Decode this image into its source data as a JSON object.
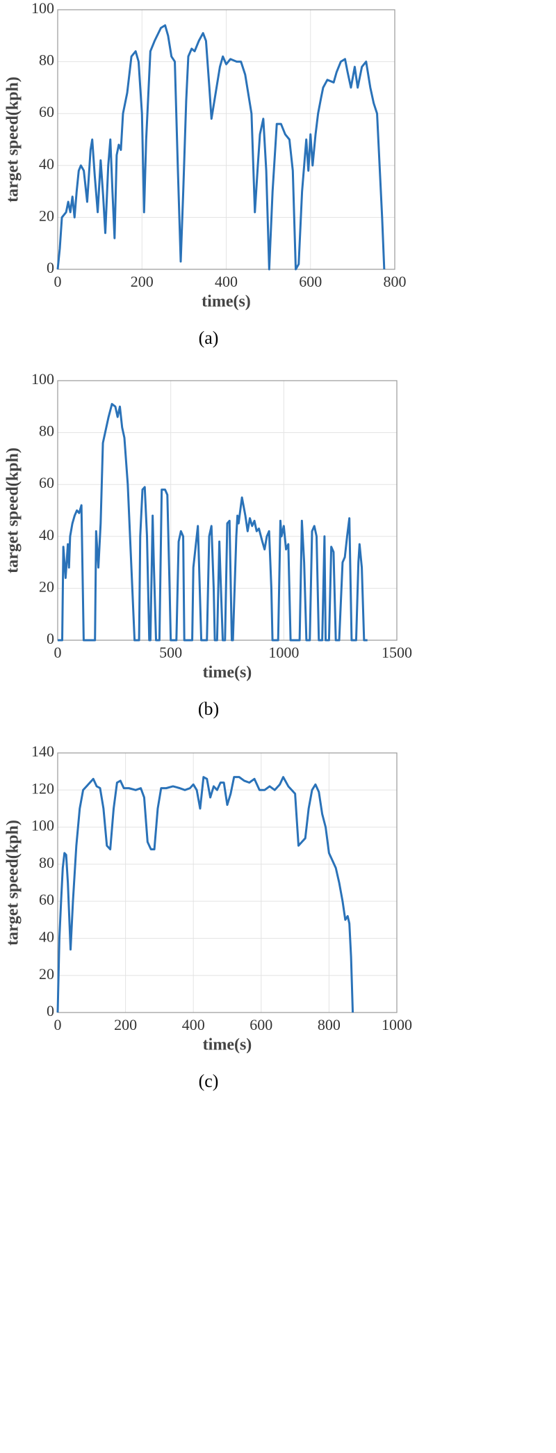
{
  "chart_data": [
    {
      "type": "line",
      "caption": "(a)",
      "xlabel": "time(s)",
      "ylabel": "target speed(kph)",
      "color": "#2a72b8",
      "grid": true,
      "xlim": [
        0,
        800
      ],
      "ylim": [
        0,
        100
      ],
      "xticks": [
        0,
        200,
        400,
        600,
        800
      ],
      "yticks": [
        0,
        20,
        40,
        60,
        80,
        100
      ],
      "x": [
        0,
        5,
        10,
        20,
        25,
        30,
        35,
        40,
        45,
        50,
        55,
        62,
        70,
        78,
        82,
        88,
        95,
        102,
        108,
        113,
        120,
        125,
        130,
        135,
        140,
        145,
        150,
        155,
        165,
        175,
        185,
        192,
        200,
        205,
        210,
        220,
        230,
        245,
        255,
        262,
        270,
        278,
        285,
        292,
        298,
        305,
        310,
        318,
        325,
        335,
        345,
        352,
        360,
        365,
        375,
        385,
        392,
        400,
        410,
        425,
        435,
        445,
        460,
        468,
        475,
        480,
        488,
        495,
        502,
        510,
        520,
        530,
        540,
        550,
        558,
        565,
        572,
        580,
        590,
        595,
        600,
        605,
        612,
        618,
        625,
        630,
        640,
        655,
        662,
        672,
        682,
        688,
        696,
        705,
        712,
        722,
        732,
        742,
        750,
        758,
        770,
        775
      ],
      "values": [
        0,
        8,
        20,
        22,
        26,
        22,
        28,
        20,
        30,
        38,
        40,
        38,
        26,
        46,
        50,
        36,
        22,
        42,
        28,
        14,
        40,
        50,
        30,
        12,
        44,
        48,
        46,
        60,
        68,
        82,
        84,
        80,
        60,
        22,
        50,
        84,
        88,
        93,
        94,
        90,
        82,
        80,
        40,
        3,
        30,
        65,
        82,
        85,
        84,
        88,
        91,
        88,
        70,
        58,
        68,
        78,
        82,
        79,
        81,
        80,
        80,
        75,
        60,
        22,
        40,
        52,
        58,
        38,
        0,
        30,
        56,
        56,
        52,
        50,
        38,
        0,
        2,
        30,
        50,
        38,
        52,
        40,
        52,
        60,
        66,
        70,
        73,
        72,
        76,
        80,
        81,
        76,
        70,
        78,
        70,
        78,
        80,
        70,
        64,
        60,
        20,
        0
      ]
    },
    {
      "type": "line",
      "caption": "(b)",
      "xlabel": "time(s)",
      "ylabel": "target speed(kph)",
      "color": "#2a72b8",
      "grid": true,
      "xlim": [
        0,
        1500
      ],
      "ylim": [
        0,
        100
      ],
      "xticks": [
        0,
        500,
        1000,
        1500
      ],
      "yticks": [
        0,
        20,
        40,
        60,
        80,
        100
      ],
      "x": [
        0,
        20,
        25,
        35,
        45,
        50,
        55,
        65,
        75,
        85,
        95,
        105,
        115,
        150,
        165,
        170,
        180,
        190,
        200,
        210,
        225,
        240,
        255,
        265,
        275,
        285,
        295,
        310,
        330,
        340,
        360,
        365,
        375,
        385,
        395,
        405,
        410,
        420,
        425,
        435,
        450,
        460,
        475,
        485,
        495,
        500,
        525,
        535,
        545,
        555,
        560,
        595,
        600,
        610,
        620,
        625,
        635,
        660,
        670,
        680,
        690,
        695,
        705,
        715,
        720,
        730,
        740,
        750,
        760,
        770,
        775,
        790,
        795,
        800,
        815,
        830,
        840,
        850,
        860,
        870,
        880,
        890,
        905,
        915,
        925,
        935,
        945,
        950,
        975,
        985,
        990,
        1000,
        1010,
        1020,
        1030,
        1070,
        1080,
        1090,
        1100,
        1115,
        1125,
        1135,
        1145,
        1155,
        1170,
        1180,
        1185,
        1200,
        1210,
        1220,
        1230,
        1245,
        1260,
        1270,
        1280,
        1290,
        1300,
        1320,
        1330,
        1335,
        1345,
        1355,
        1370
      ],
      "values": [
        0,
        0,
        36,
        24,
        37,
        28,
        40,
        45,
        48,
        50,
        49,
        52,
        0,
        0,
        0,
        42,
        28,
        45,
        76,
        80,
        86,
        91,
        90,
        86,
        90,
        82,
        78,
        60,
        20,
        0,
        0,
        40,
        58,
        59,
        40,
        0,
        0,
        48,
        30,
        0,
        0,
        58,
        58,
        56,
        20,
        0,
        0,
        38,
        42,
        40,
        0,
        0,
        28,
        36,
        44,
        30,
        0,
        0,
        40,
        44,
        20,
        0,
        0,
        38,
        25,
        0,
        0,
        45,
        46,
        0,
        0,
        40,
        48,
        45,
        55,
        48,
        42,
        47,
        44,
        46,
        42,
        43,
        38,
        35,
        40,
        42,
        20,
        0,
        0,
        46,
        40,
        44,
        35,
        37,
        0,
        0,
        46,
        30,
        0,
        0,
        42,
        44,
        40,
        0,
        0,
        40,
        0,
        0,
        36,
        34,
        0,
        0,
        30,
        32,
        40,
        47,
        0,
        0,
        30,
        37,
        28,
        0,
        0
      ]
    },
    {
      "type": "line",
      "caption": "(c)",
      "xlabel": "time(s)",
      "ylabel": "target speed(kph)",
      "color": "#2a72b8",
      "grid": true,
      "xlim": [
        0,
        1000
      ],
      "ylim": [
        0,
        140
      ],
      "xticks": [
        0,
        200,
        400,
        600,
        800,
        1000
      ],
      "yticks": [
        0,
        20,
        40,
        60,
        80,
        100,
        120,
        140
      ],
      "x": [
        0,
        5,
        10,
        15,
        20,
        25,
        30,
        38,
        45,
        55,
        65,
        75,
        85,
        95,
        105,
        115,
        125,
        135,
        145,
        155,
        165,
        175,
        185,
        195,
        210,
        230,
        245,
        255,
        265,
        275,
        285,
        295,
        305,
        320,
        340,
        360,
        375,
        390,
        400,
        410,
        420,
        430,
        440,
        450,
        460,
        470,
        480,
        490,
        500,
        510,
        520,
        535,
        550,
        565,
        580,
        595,
        610,
        625,
        640,
        655,
        665,
        680,
        690,
        700,
        710,
        720,
        730,
        740,
        750,
        760,
        770,
        780,
        790,
        800,
        810,
        820,
        830,
        840,
        848,
        855,
        860,
        865,
        870
      ],
      "values": [
        0,
        40,
        60,
        78,
        86,
        85,
        70,
        34,
        60,
        90,
        110,
        120,
        122,
        124,
        126,
        122,
        121,
        110,
        90,
        88,
        110,
        124,
        125,
        121,
        121,
        120,
        121,
        116,
        92,
        88,
        88,
        110,
        121,
        121,
        122,
        121,
        120,
        121,
        123,
        120,
        110,
        127,
        126,
        116,
        122,
        120,
        124,
        124,
        112,
        118,
        127,
        127,
        125,
        124,
        126,
        120,
        120,
        122,
        120,
        123,
        127,
        122,
        120,
        118,
        90,
        92,
        94,
        110,
        120,
        123,
        119,
        107,
        100,
        86,
        82,
        78,
        70,
        60,
        50,
        52,
        48,
        30,
        0
      ]
    }
  ]
}
